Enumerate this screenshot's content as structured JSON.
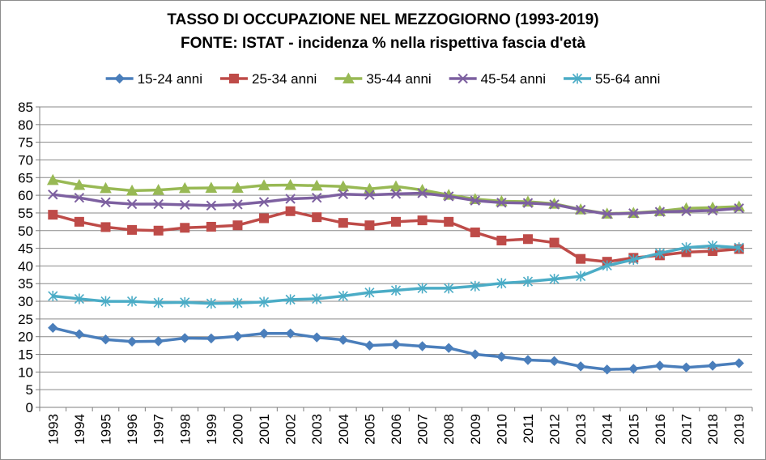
{
  "chart_data": {
    "type": "line",
    "title": "TASSO DI OCCUPAZIONE NEL MEZZOGIORNO (1993-2019)",
    "subtitle": "FONTE: ISTAT - incidenza % nella rispettiva fascia d'età",
    "xlabel": "",
    "ylabel": "",
    "ylim": [
      0,
      85
    ],
    "yticks": [
      "0",
      "5",
      "10",
      "15",
      "20",
      "25",
      "30",
      "35",
      "40",
      "45",
      "50",
      "55",
      "60",
      "65",
      "70",
      "75",
      "80",
      "85"
    ],
    "grid": true,
    "legend_position": "top",
    "x": [
      "1993",
      "1994",
      "1995",
      "1996",
      "1997",
      "1998",
      "1999",
      "2000",
      "2001",
      "2002",
      "2003",
      "2004",
      "2005",
      "2006",
      "2007",
      "2008",
      "2009",
      "2010",
      "2011",
      "2012",
      "2013",
      "2014",
      "2015",
      "2016",
      "2017",
      "2018",
      "2019"
    ],
    "series": [
      {
        "name": "15-24 anni",
        "color": "#4a7ebb",
        "marker": "diamond",
        "values": [
          22.5,
          20.7,
          19.2,
          18.6,
          18.7,
          19.6,
          19.5,
          20.1,
          20.9,
          20.9,
          19.8,
          19.1,
          17.5,
          17.8,
          17.3,
          16.8,
          15.0,
          14.3,
          13.4,
          13.1,
          11.6,
          10.7,
          10.9,
          11.8,
          11.3,
          11.8,
          12.5
        ]
      },
      {
        "name": "25-34 anni",
        "color": "#be4b48",
        "marker": "square",
        "values": [
          54.5,
          52.5,
          51.0,
          50.2,
          50.0,
          50.8,
          51.1,
          51.5,
          53.5,
          55.5,
          53.8,
          52.2,
          51.5,
          52.5,
          52.9,
          52.5,
          49.5,
          47.2,
          47.6,
          46.6,
          42.0,
          41.2,
          42.3,
          43.0,
          43.9,
          44.2,
          44.8
        ]
      },
      {
        "name": "35-44 anni",
        "color": "#98b954",
        "marker": "triangle",
        "values": [
          64.3,
          62.9,
          62.0,
          61.3,
          61.5,
          62.0,
          62.1,
          62.1,
          62.8,
          62.9,
          62.7,
          62.5,
          61.8,
          62.5,
          61.5,
          60.1,
          58.9,
          58.3,
          58.2,
          57.6,
          56.0,
          54.8,
          55.0,
          55.5,
          56.3,
          56.5,
          56.8
        ]
      },
      {
        "name": "45-54 anni",
        "color": "#7d60a0",
        "marker": "x",
        "values": [
          60.2,
          59.3,
          58.0,
          57.5,
          57.5,
          57.3,
          57.1,
          57.4,
          58.1,
          59.0,
          59.3,
          60.3,
          60.1,
          60.4,
          60.6,
          59.7,
          58.5,
          57.9,
          57.8,
          57.4,
          55.9,
          54.7,
          54.9,
          55.3,
          55.5,
          55.7,
          56.3
        ]
      },
      {
        "name": "55-64 anni",
        "color": "#4bacc6",
        "marker": "asterisk",
        "values": [
          31.5,
          30.7,
          30.0,
          30.0,
          29.6,
          29.7,
          29.4,
          29.5,
          29.8,
          30.5,
          30.7,
          31.5,
          32.5,
          33.1,
          33.7,
          33.7,
          34.3,
          35.1,
          35.6,
          36.3,
          37.1,
          40.1,
          41.8,
          43.6,
          45.2,
          45.7,
          45.2
        ]
      }
    ]
  }
}
